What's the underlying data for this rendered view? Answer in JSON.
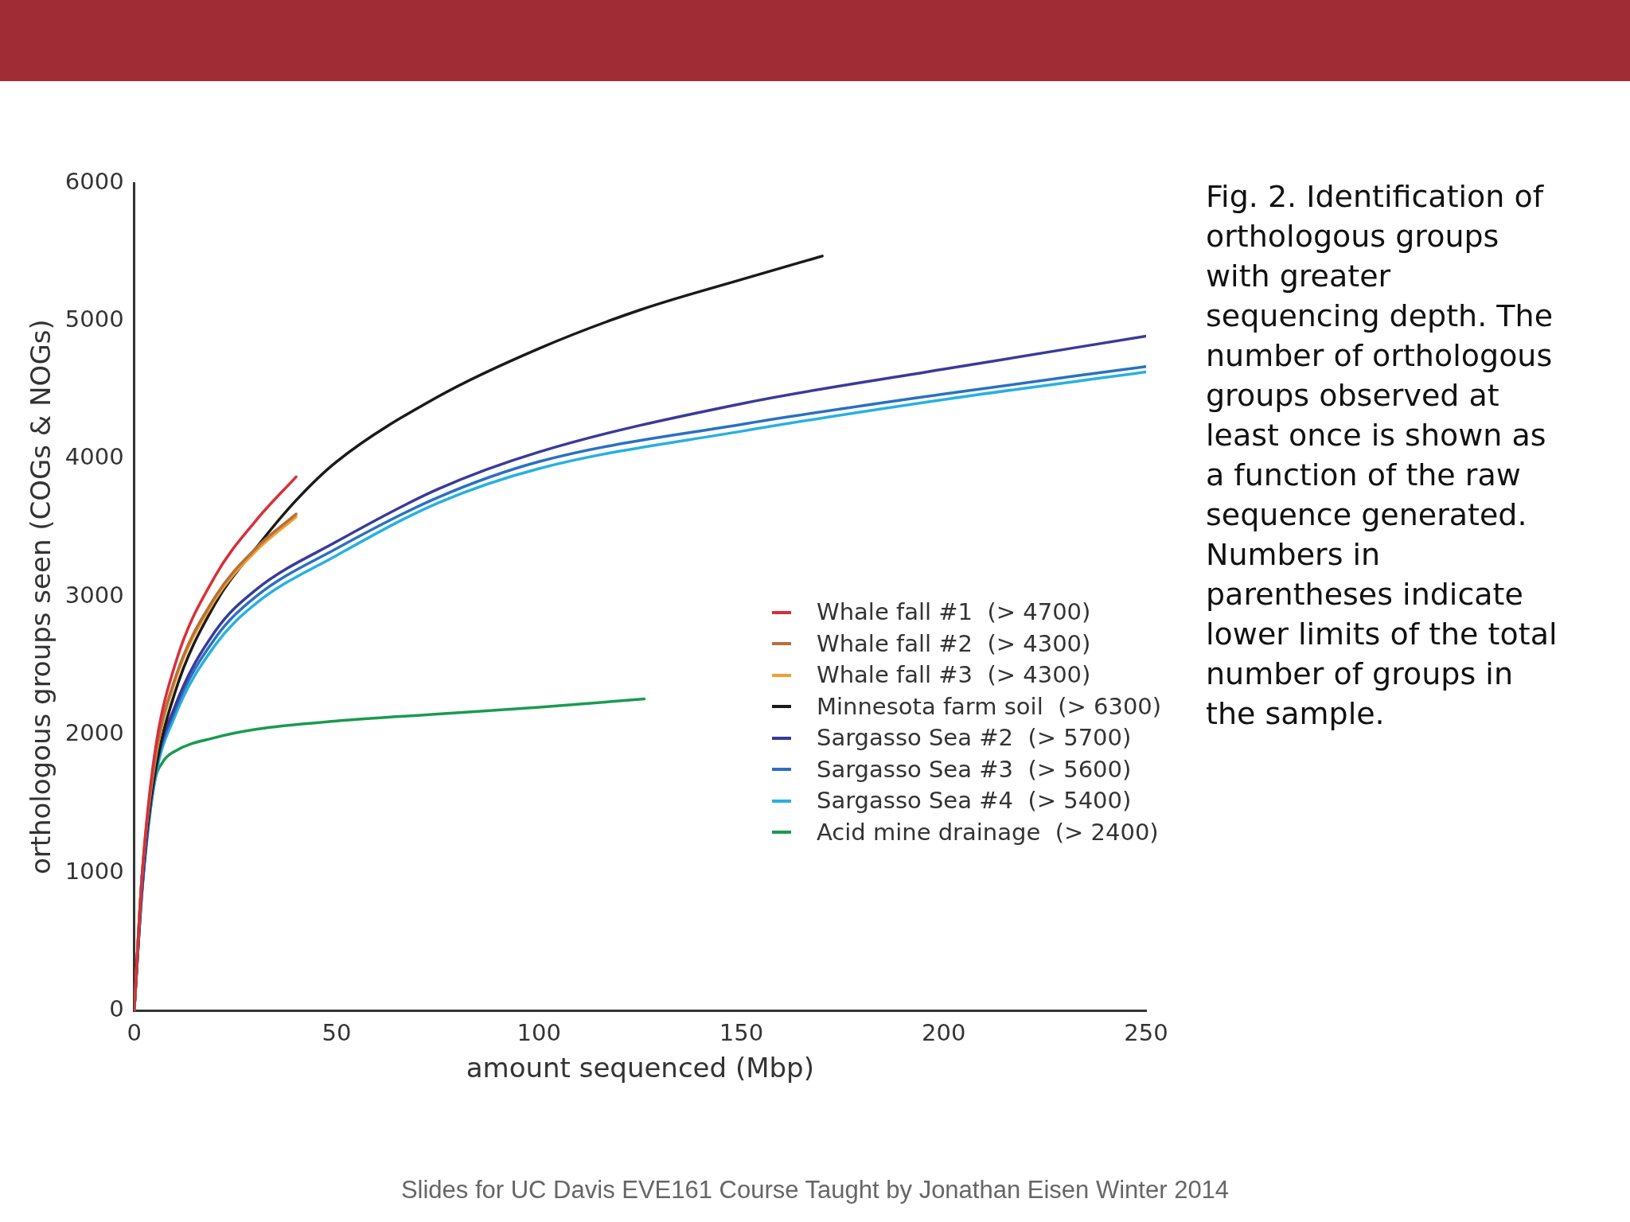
{
  "chart_data": {
    "type": "line",
    "xlabel": "amount sequenced (Mbp)",
    "ylabel": "orthologous groups seen (COGs & NOGs)",
    "xlim": [
      0,
      250
    ],
    "xticks": [
      0,
      50,
      100,
      150,
      200,
      250
    ],
    "ylim": [
      0,
      6000
    ],
    "yticks": [
      0,
      1000,
      2000,
      3000,
      4000,
      5000,
      6000
    ],
    "grid": false,
    "legend": "bottom right",
    "marker": "none",
    "line_style": "solid",
    "series": [
      {
        "name": "Whale fall #1  (> 4700)",
        "color": "#d7303a",
        "x": [
          0,
          2,
          5,
          10,
          20,
          30,
          40
        ],
        "values": [
          0,
          1000,
          1850,
          2500,
          3150,
          3550,
          3870
        ]
      },
      {
        "name": "Whale fall #2  (> 4300)",
        "color": "#b8703a",
        "x": [
          0,
          2,
          5,
          10,
          20,
          30,
          40
        ],
        "values": [
          0,
          1000,
          1800,
          2400,
          3000,
          3350,
          3600
        ]
      },
      {
        "name": "Whale fall #3  (> 4300)",
        "color": "#f0a030",
        "x": [
          0,
          2,
          5,
          10,
          20,
          30,
          40
        ],
        "values": [
          0,
          1000,
          1780,
          2380,
          2980,
          3330,
          3580
        ]
      },
      {
        "name": "Minnesota farm soil  (> 6300)",
        "color": "#1a1a1a",
        "x": [
          0,
          2,
          5,
          10,
          20,
          30,
          40,
          50,
          75,
          100,
          125,
          150,
          170
        ],
        "values": [
          0,
          1000,
          1700,
          2300,
          2950,
          3350,
          3700,
          3980,
          4450,
          4800,
          5080,
          5300,
          5470
        ]
      },
      {
        "name": "Sargasso Sea #2  (> 5700)",
        "color": "#3a3a9a",
        "x": [
          0,
          2,
          5,
          10,
          20,
          30,
          50,
          75,
          100,
          150,
          200,
          250
        ],
        "values": [
          0,
          900,
          1700,
          2200,
          2750,
          3050,
          3400,
          3780,
          4050,
          4400,
          4650,
          4890
        ]
      },
      {
        "name": "Sargasso Sea #3  (> 5600)",
        "color": "#2a70c0",
        "x": [
          0,
          2,
          5,
          10,
          20,
          30,
          50,
          75,
          100,
          150,
          200,
          250
        ],
        "values": [
          0,
          900,
          1680,
          2170,
          2700,
          3000,
          3350,
          3720,
          3980,
          4250,
          4470,
          4670
        ]
      },
      {
        "name": "Sargasso Sea #4  (> 5400)",
        "color": "#28b0e0",
        "x": [
          0,
          2,
          5,
          10,
          20,
          30,
          50,
          75,
          100,
          150,
          200,
          250
        ],
        "values": [
          0,
          880,
          1650,
          2130,
          2650,
          2950,
          3300,
          3680,
          3930,
          4200,
          4430,
          4630
        ]
      },
      {
        "name": "Acid mine drainage  (> 2400)",
        "color": "#1a9a50",
        "x": [
          0,
          2,
          5,
          7,
          10,
          20,
          30,
          50,
          75,
          100,
          126
        ],
        "values": [
          0,
          900,
          1650,
          1800,
          1880,
          1980,
          2040,
          2100,
          2150,
          2200,
          2260
        ]
      }
    ],
    "annotations": [
      "Fig. 2. Identification of orthologous groups with greater sequencing depth. The number of orthologous groups observed at least once is shown as a function of the raw sequence generated. Numbers in parentheses indicate lower limits of the total number of groups in the sample.",
      "Slides for UC Davis EVE161 Course Taught by Jonathan Eisen Winter 2014"
    ]
  }
}
